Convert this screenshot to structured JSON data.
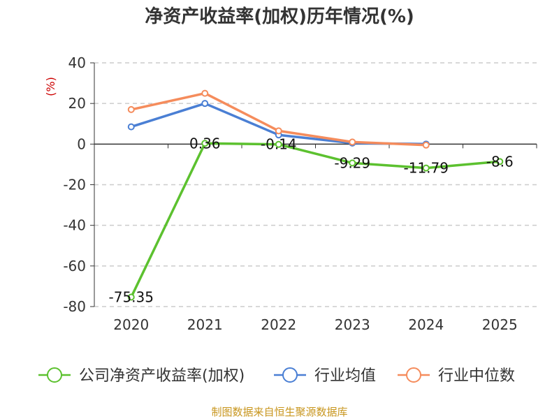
{
  "chart_data": {
    "type": "line",
    "title": "净资产收益率(加权)历年情况(%)",
    "ylabel": "(%)",
    "xlabel": "",
    "categories": [
      "2020",
      "2021",
      "2022",
      "2023",
      "2024",
      "2025"
    ],
    "ylim": [
      -80,
      40
    ],
    "yticks": [
      40,
      20,
      0,
      -20,
      -40,
      -60,
      -80
    ],
    "ytick_labels": [
      "40",
      "20",
      "0",
      "-20",
      "-40",
      "-60",
      "-80"
    ],
    "grid": true,
    "legend_position": "bottom",
    "series": [
      {
        "name": "公司净资产收益率(加权)",
        "color": "#5cc12f",
        "values": [
          -75.35,
          0.36,
          -0.14,
          -9.29,
          -11.79,
          -8.6
        ],
        "labels": [
          "-75.35",
          "0.36",
          "-0.14",
          "-9.29",
          "-11.79",
          "-8.6"
        ]
      },
      {
        "name": "行业均值",
        "color": "#4a7fd4",
        "values": [
          8.5,
          20.0,
          4.5,
          0.5,
          0.0,
          null
        ]
      },
      {
        "name": "行业中位数",
        "color": "#f58c5c",
        "values": [
          17.0,
          25.0,
          6.5,
          1.0,
          -0.5,
          null
        ]
      }
    ]
  },
  "source_text": "制图数据来自恒生聚源数据库",
  "colors": {
    "axis": "#333333",
    "grid": "#cccccc",
    "ylabel": "#cc0000",
    "source": "#c8961e"
  }
}
